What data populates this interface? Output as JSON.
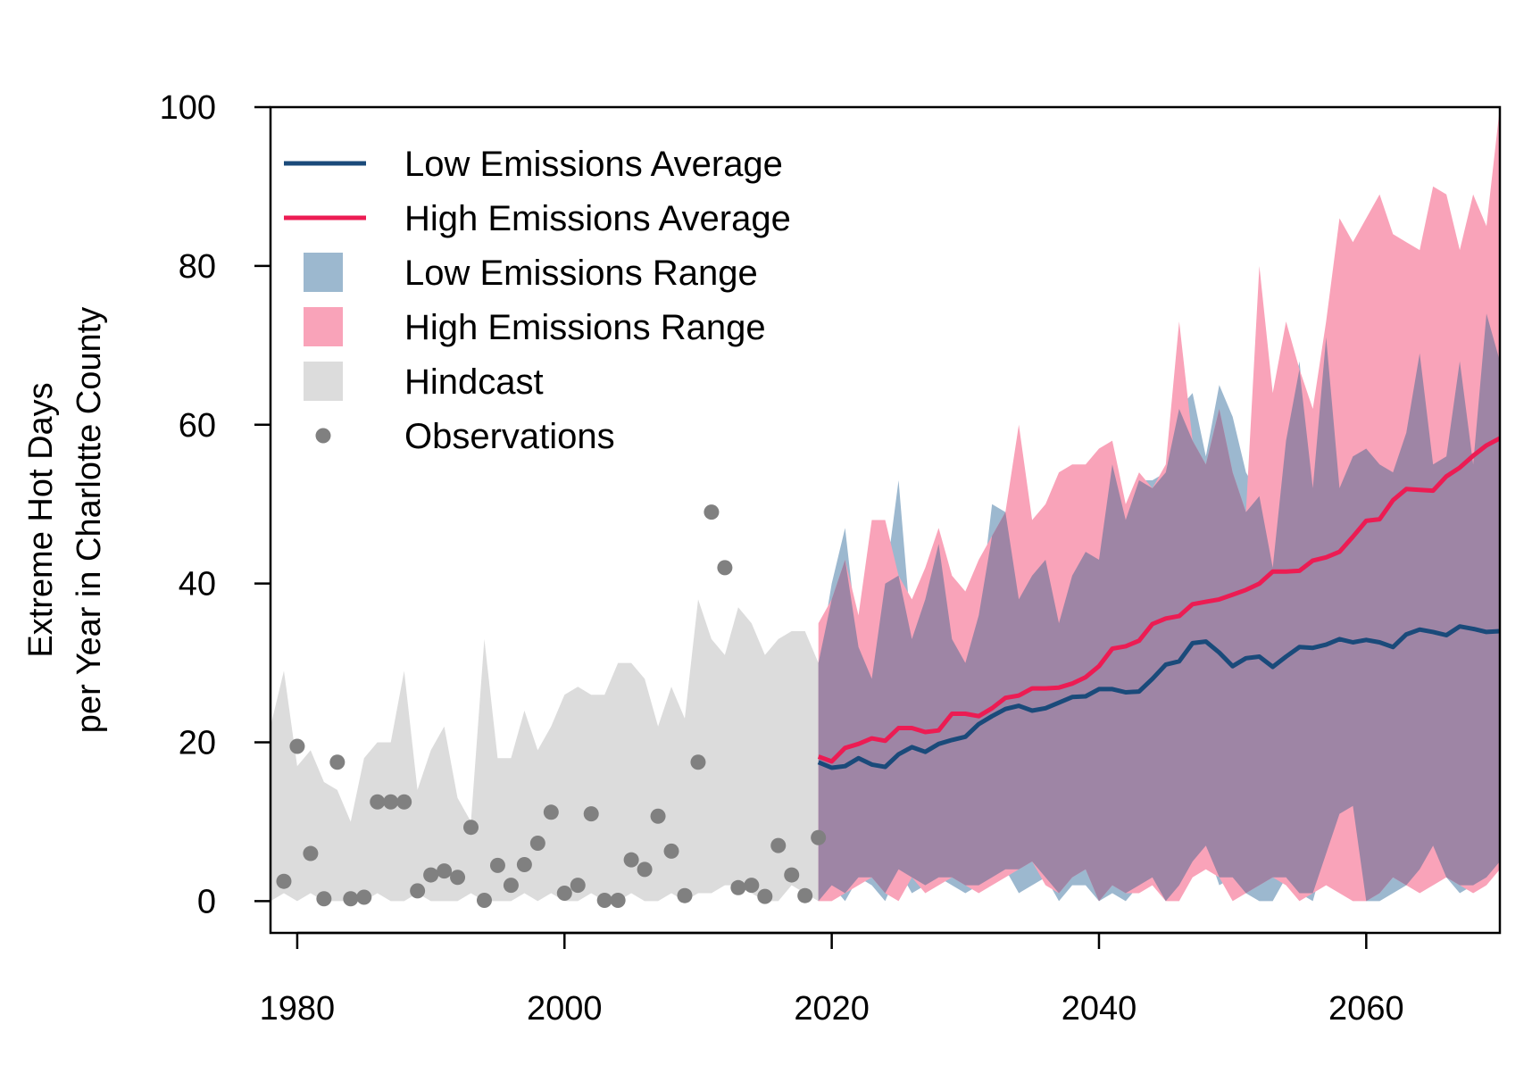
{
  "chart_data": {
    "type": "area",
    "title": "",
    "xlabel": "",
    "ylabel_lines": [
      "Extreme Hot Days",
      "per Year in Charlotte County"
    ],
    "xlim": [
      1978,
      2070
    ],
    "ylim": [
      -4,
      100
    ],
    "xticks": [
      1980,
      2000,
      2020,
      2040,
      2060
    ],
    "yticks": [
      0,
      20,
      40,
      60,
      80,
      100
    ],
    "grid": false,
    "legend_position": "top-left",
    "legend": [
      {
        "label": "Low Emissions Average",
        "kind": "line",
        "color": "#1a4a7a"
      },
      {
        "label": "High Emissions Average",
        "kind": "line",
        "color": "#ec1c53"
      },
      {
        "label": "Low Emissions Range",
        "kind": "box",
        "color": "#9cb8cf"
      },
      {
        "label": "High Emissions Range",
        "kind": "box",
        "color": "#f9a3b9"
      },
      {
        "label": "Hindcast",
        "kind": "box",
        "color": "#dcdcdc"
      },
      {
        "label": "Observations",
        "kind": "point",
        "color": "#808080"
      }
    ],
    "colors": {
      "low_avg": "#1a4a7a",
      "high_avg": "#ec1c53",
      "low_range": "#9cb8cf",
      "high_range": "#f9a3b9",
      "overlap": "#9e85a5",
      "hindcast": "#dcdcdc",
      "observations": "#808080"
    },
    "hindcast": {
      "x": [
        1978,
        1979,
        1980,
        1981,
        1982,
        1983,
        1984,
        1985,
        1986,
        1987,
        1988,
        1989,
        1990,
        1991,
        1992,
        1993,
        1994,
        1995,
        1996,
        1997,
        1998,
        1999,
        2000,
        2001,
        2002,
        2003,
        2004,
        2005,
        2006,
        2007,
        2008,
        2009,
        2010,
        2011,
        2012,
        2013,
        2014,
        2015,
        2016,
        2017,
        2018,
        2019
      ],
      "upper": [
        22,
        29,
        17,
        19,
        15,
        14,
        10,
        18,
        20,
        20,
        29,
        14,
        19,
        22,
        13,
        10,
        33,
        18,
        18,
        24,
        19,
        22,
        26,
        27,
        26,
        26,
        30,
        30,
        28,
        22,
        27,
        23,
        38,
        33,
        31,
        37,
        35,
        31,
        33,
        34,
        34,
        30
      ],
      "lower": [
        0,
        1,
        0,
        1,
        0,
        0,
        0,
        0,
        1,
        0,
        0,
        1,
        0,
        0,
        0,
        1,
        0,
        0,
        0,
        1,
        0,
        1,
        0,
        0,
        1,
        0,
        0,
        1,
        0,
        0,
        1,
        0,
        1,
        1,
        2,
        2,
        1,
        0,
        0,
        2,
        1,
        0
      ]
    },
    "observations": {
      "x": [
        1979,
        1980,
        1981,
        1982,
        1983,
        1984,
        1985,
        1986,
        1987,
        1988,
        1989,
        1990,
        1991,
        1992,
        1993,
        1994,
        1995,
        1996,
        1997,
        1998,
        1999,
        2000,
        2001,
        2002,
        2003,
        2004,
        2005,
        2006,
        2007,
        2008,
        2009,
        2010,
        2011,
        2012,
        2013,
        2014,
        2015,
        2016,
        2017,
        2018,
        2019
      ],
      "y": [
        2.5,
        19.5,
        6,
        0.3,
        17.5,
        0.3,
        0.5,
        12.5,
        12.5,
        12.5,
        1.3,
        3.3,
        3.8,
        3,
        9.3,
        0.1,
        4.5,
        2,
        4.6,
        7.3,
        11.2,
        1,
        2,
        11,
        0.1,
        0.1,
        5.2,
        4,
        10.7,
        6.3,
        0.7,
        17.5,
        49,
        42,
        1.7,
        2,
        0.6,
        7,
        3.3,
        0.7,
        8
      ]
    },
    "low_emissions_range": {
      "x": [
        2019,
        2020,
        2021,
        2022,
        2023,
        2024,
        2025,
        2026,
        2027,
        2028,
        2029,
        2030,
        2031,
        2032,
        2033,
        2034,
        2035,
        2036,
        2037,
        2038,
        2039,
        2040,
        2041,
        2042,
        2043,
        2044,
        2045,
        2046,
        2047,
        2048,
        2049,
        2050,
        2051,
        2052,
        2053,
        2054,
        2055,
        2056,
        2057,
        2058,
        2059,
        2060,
        2061,
        2062,
        2063,
        2064,
        2065,
        2066,
        2067,
        2068,
        2069,
        2070
      ],
      "upper": [
        30,
        40,
        47,
        32,
        28,
        40,
        53,
        33,
        38,
        45,
        33,
        30,
        36,
        50,
        49,
        38,
        41,
        43,
        35,
        41,
        44,
        43,
        55,
        48,
        53,
        53,
        54,
        62,
        64,
        56,
        65,
        61,
        54,
        51,
        42,
        58,
        68,
        52,
        71,
        52,
        56,
        57,
        55,
        54,
        59,
        69,
        55,
        56,
        68,
        55,
        74,
        68
      ],
      "lower": [
        0,
        2,
        0,
        3,
        2,
        0,
        4,
        1,
        2,
        3,
        2,
        1,
        2,
        3,
        4,
        1,
        2,
        3,
        0,
        2,
        2,
        0,
        1,
        0,
        2,
        3,
        0,
        2,
        5,
        7,
        2,
        3,
        1,
        0,
        0,
        3,
        1,
        0,
        6,
        11,
        12,
        0,
        0,
        1,
        2,
        4,
        7,
        3,
        1,
        2,
        3,
        5
      ]
    },
    "high_emissions_range": {
      "x": [
        2019,
        2020,
        2021,
        2022,
        2023,
        2024,
        2025,
        2026,
        2027,
        2028,
        2029,
        2030,
        2031,
        2032,
        2033,
        2034,
        2035,
        2036,
        2037,
        2038,
        2039,
        2040,
        2041,
        2042,
        2043,
        2044,
        2045,
        2046,
        2047,
        2048,
        2049,
        2050,
        2051,
        2052,
        2053,
        2054,
        2055,
        2056,
        2057,
        2058,
        2059,
        2060,
        2061,
        2062,
        2063,
        2064,
        2065,
        2066,
        2067,
        2068,
        2069,
        2070
      ],
      "upper": [
        35,
        38,
        43,
        36,
        48,
        48,
        41,
        38,
        42,
        47,
        41,
        39,
        43,
        46,
        49,
        60,
        48,
        50,
        54,
        55,
        55,
        57,
        58,
        50,
        54,
        52,
        55,
        73,
        58,
        55,
        62,
        54,
        49,
        80,
        64,
        73,
        67,
        62,
        73,
        86,
        83,
        86,
        89,
        84,
        83,
        82,
        90,
        89,
        82,
        89,
        85,
        100
      ],
      "lower": [
        0,
        0,
        1,
        2,
        3,
        1,
        0,
        3,
        1,
        2,
        3,
        2,
        1,
        2,
        3,
        4,
        5,
        2,
        1,
        3,
        4,
        0,
        2,
        1,
        1,
        2,
        0,
        0,
        3,
        4,
        3,
        0,
        1,
        2,
        3,
        2,
        0,
        1,
        2,
        1,
        0,
        0,
        1,
        3,
        2,
        1,
        2,
        3,
        2,
        1,
        2,
        4
      ]
    },
    "series": [
      {
        "name": "Low Emissions Average",
        "x": [
          2019,
          2020,
          2021,
          2022,
          2023,
          2024,
          2025,
          2026,
          2027,
          2028,
          2029,
          2030,
          2031,
          2032,
          2033,
          2034,
          2035,
          2036,
          2037,
          2038,
          2039,
          2040,
          2041,
          2042,
          2043,
          2044,
          2045,
          2046,
          2047,
          2048,
          2049,
          2050,
          2051,
          2052,
          2053,
          2054,
          2055,
          2056,
          2057,
          2058,
          2059,
          2060,
          2061,
          2062,
          2063,
          2064,
          2065,
          2066,
          2067,
          2068,
          2069,
          2070
        ],
        "values": [
          17.5,
          16.8,
          17,
          18,
          17.2,
          16.9,
          18.5,
          19.4,
          18.8,
          19.8,
          20.3,
          20.7,
          22.3,
          23.3,
          24.2,
          24.6,
          24,
          24.3,
          25,
          25.7,
          25.8,
          26.7,
          26.7,
          26.3,
          26.4,
          28,
          29.8,
          30.2,
          32.5,
          32.7,
          31.3,
          29.6,
          30.6,
          30.8,
          29.5,
          30.8,
          32,
          31.9,
          32.3,
          33,
          32.6,
          32.9,
          32.6,
          32,
          33.6,
          34.2,
          33.9,
          33.5,
          34.6,
          34.3,
          33.9,
          34
        ]
      },
      {
        "name": "High Emissions Average",
        "x": [
          2019,
          2020,
          2021,
          2022,
          2023,
          2024,
          2025,
          2026,
          2027,
          2028,
          2029,
          2030,
          2031,
          2032,
          2033,
          2034,
          2035,
          2036,
          2037,
          2038,
          2039,
          2040,
          2041,
          2042,
          2043,
          2044,
          2045,
          2046,
          2047,
          2048,
          2049,
          2050,
          2051,
          2052,
          2053,
          2054,
          2055,
          2056,
          2057,
          2058,
          2059,
          2060,
          2061,
          2062,
          2063,
          2064,
          2065,
          2066,
          2067,
          2068,
          2069,
          2070
        ],
        "values": [
          18.2,
          17.6,
          19.3,
          19.8,
          20.5,
          20.2,
          21.8,
          21.8,
          21.3,
          21.5,
          23.6,
          23.6,
          23.3,
          24.3,
          25.6,
          25.9,
          26.8,
          26.8,
          26.9,
          27.4,
          28.2,
          29.6,
          31.8,
          32.1,
          32.8,
          34.9,
          35.6,
          35.9,
          37.4,
          37.7,
          38,
          38.6,
          39.2,
          40,
          41.5,
          41.5,
          41.6,
          42.9,
          43.3,
          44,
          45.9,
          47.9,
          48.1,
          50.5,
          51.9,
          51.8,
          51.7,
          53.5,
          54.6,
          56.1,
          57.4,
          58.3
        ]
      }
    ]
  }
}
